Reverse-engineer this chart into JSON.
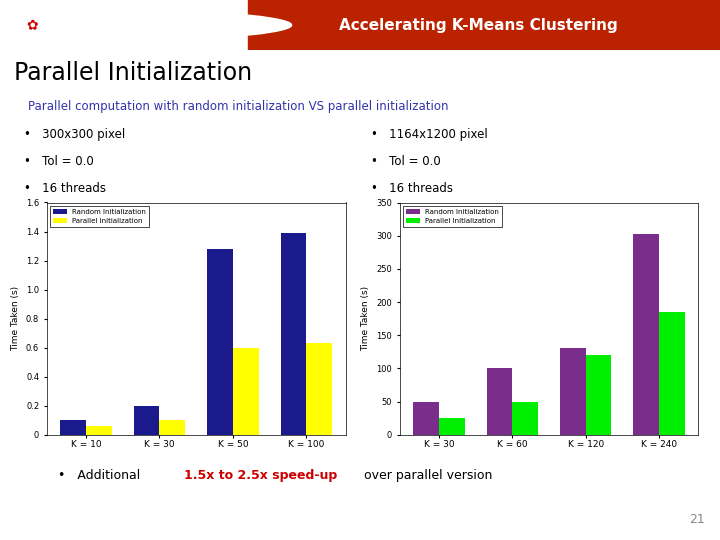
{
  "title_header": "Accelerating K-Means Clustering",
  "slide_title": "Parallel Initialization",
  "subtitle": "Parallel computation with random initialization VS parallel initialization",
  "subtitle_color": "#3333aa",
  "header_bg": "#CC0000",
  "header_right_bg": "#BB3300",
  "header_text_color": "#FFFFFF",
  "bullet_left": [
    "300x300 pixel",
    "Tol = 0.0",
    "16 threads"
  ],
  "bullet_right": [
    "1164x1200 pixel",
    "Tol = 0.0",
    "16 threads"
  ],
  "footer_prefix": "•   Additional ",
  "footer_highlight": "1.5x to 2.5x speed-up",
  "footer_end": " over parallel version",
  "footer_highlight_color": "#CC0000",
  "page_number": "21",
  "chart1": {
    "categories": [
      "K = 10",
      "K = 30",
      "K = 50",
      "K = 100"
    ],
    "bar1_values": [
      0.1,
      0.2,
      1.28,
      1.39
    ],
    "bar2_values": [
      0.06,
      0.1,
      0.6,
      0.63
    ],
    "bar1_color": "#1a1a8c",
    "bar2_color": "#ffff00",
    "bar1_label": "Random Initialization",
    "bar2_label": "Parallel Initialization",
    "ylabel": "Time Taken (s)",
    "ylim": [
      0,
      1.6
    ],
    "yticks": [
      0,
      0.2,
      0.4,
      0.6,
      0.8,
      1.0,
      1.2,
      1.4,
      1.6
    ]
  },
  "chart2": {
    "categories": [
      "K = 30",
      "K = 60",
      "K = 120",
      "K = 240"
    ],
    "bar1_values": [
      50,
      100,
      130,
      302
    ],
    "bar2_values": [
      25,
      50,
      120,
      185
    ],
    "bar1_color": "#7b2d8b",
    "bar2_color": "#00ee00",
    "bar1_label": "Random Initialization",
    "bar2_label": "Parallel Initialization",
    "ylabel": "Time Taken (s)",
    "ylim": [
      0,
      350
    ],
    "yticks": [
      0,
      50,
      100,
      150,
      200,
      250,
      300,
      350
    ]
  }
}
